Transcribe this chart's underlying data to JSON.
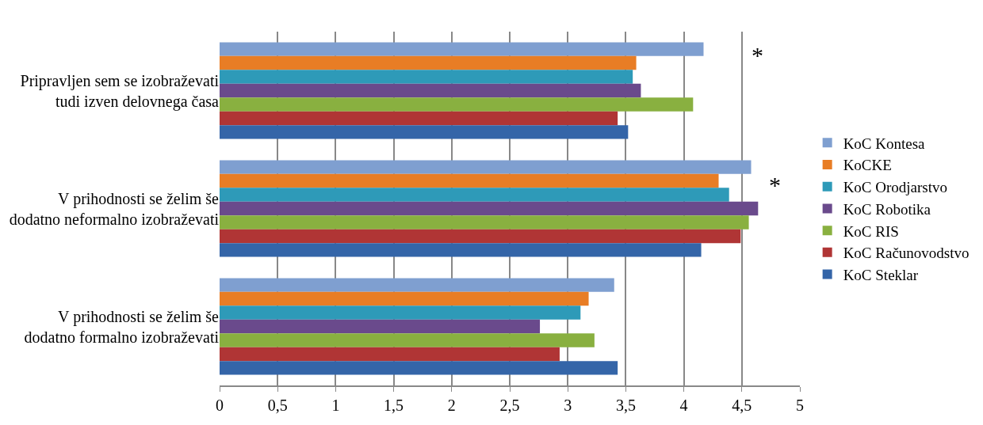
{
  "chart_data": {
    "type": "bar",
    "orientation": "horizontal",
    "categories": [
      "Pripravljen sem se izobraževati tudi izven delovnega časa",
      "V prihodnosti se želim še dodatno neformalno izobraževati",
      "V prihodnosti se želim še dodatno formalno izobraževati"
    ],
    "series": [
      {
        "name": "KoC Kontesa",
        "color": "#7f9fd0",
        "values": [
          4.17,
          4.58,
          3.4
        ]
      },
      {
        "name": "KoCKE",
        "color": "#e87d25",
        "values": [
          3.59,
          4.3,
          3.18
        ]
      },
      {
        "name": "KoC Orodjarstvo",
        "color": "#2e9ab8",
        "values": [
          3.56,
          4.39,
          3.11
        ]
      },
      {
        "name": "KoC Robotika",
        "color": "#6a4a8c",
        "values": [
          3.63,
          4.64,
          2.76
        ]
      },
      {
        "name": "KoC RIS",
        "color": "#89b040",
        "values": [
          4.08,
          4.56,
          3.23
        ]
      },
      {
        "name": "KoC Računovodstvo",
        "color": "#b03535",
        "values": [
          3.43,
          4.49,
          2.93
        ]
      },
      {
        "name": "KoC Steklar",
        "color": "#3465a8",
        "values": [
          3.52,
          4.15,
          3.43
        ]
      }
    ],
    "xlim": [
      0,
      5
    ],
    "xticks": [
      0,
      {
        "value": 0.5,
        "label": "0,5"
      },
      1,
      {
        "value": 1.5,
        "label": "1,5"
      },
      2,
      {
        "value": 2.5,
        "label": "2,5"
      },
      3,
      {
        "value": 3.5,
        "label": "3,5"
      },
      4,
      {
        "value": 4.5,
        "label": "4,5"
      },
      5
    ],
    "annotations": [
      "*",
      "*"
    ],
    "grid": "x",
    "legend": "right"
  }
}
